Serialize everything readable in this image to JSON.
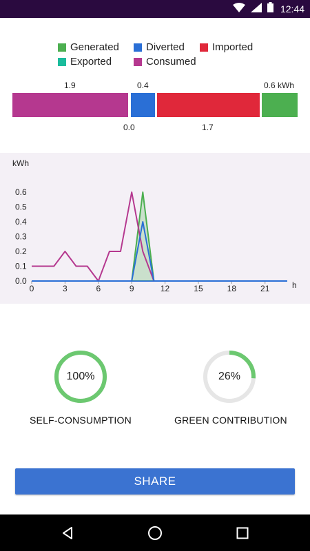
{
  "status_bar": {
    "time": "12:44",
    "icons": [
      "wifi-icon",
      "signal-icon",
      "battery-icon"
    ]
  },
  "legend": [
    {
      "label": "Generated",
      "color": "#4caf50"
    },
    {
      "label": "Diverted",
      "color": "#2a6fd6"
    },
    {
      "label": "Imported",
      "color": "#e0283a"
    },
    {
      "label": "Exported",
      "color": "#1abc9c"
    },
    {
      "label": "Consumed",
      "color": "#b5388f"
    }
  ],
  "summary_bar": {
    "segments": [
      {
        "name": "Consumed",
        "value": 1.9,
        "color": "#b5388f"
      },
      {
        "name": "Diverted",
        "value": 0.4,
        "color": "#2a6fd6"
      },
      {
        "name": "Imported",
        "value": 1.7,
        "color": "#e0283a"
      },
      {
        "name": "Generated",
        "value": 0.6,
        "color": "#4caf50"
      }
    ],
    "labels_top": [
      "1.9",
      "0.4",
      "0.6 kWh"
    ],
    "labels_bottom": [
      "0.0",
      "1.7"
    ]
  },
  "chart_data": {
    "type": "line",
    "ylabel": "kWh",
    "xlabel": "h",
    "xlim": [
      0,
      23
    ],
    "ylim": [
      0,
      0.6
    ],
    "x_ticks": [
      "0",
      "3",
      "6",
      "9",
      "12",
      "15",
      "18",
      "21"
    ],
    "y_ticks": [
      "0.0",
      "0.1",
      "0.2",
      "0.3",
      "0.4",
      "0.5",
      "0.6"
    ],
    "series": [
      {
        "name": "Consumed",
        "color": "#b5388f",
        "x": [
          0,
          1,
          2,
          3,
          4,
          5,
          6,
          7,
          8,
          9,
          10,
          11,
          12,
          13,
          14,
          15,
          16,
          17,
          18,
          19,
          20,
          21,
          22,
          23
        ],
        "values": [
          0.1,
          0.1,
          0.1,
          0.2,
          0.1,
          0.1,
          0.0,
          0.2,
          0.2,
          0.6,
          0.2,
          0.0,
          0,
          0,
          0,
          0,
          0,
          0,
          0,
          0,
          0,
          0,
          0,
          0
        ]
      },
      {
        "name": "Generated",
        "color": "#4caf50",
        "fill": true,
        "x": [
          0,
          1,
          2,
          3,
          4,
          5,
          6,
          7,
          8,
          9,
          10,
          11,
          12,
          13,
          14,
          15,
          16,
          17,
          18,
          19,
          20,
          21,
          22,
          23
        ],
        "values": [
          0,
          0,
          0,
          0,
          0,
          0,
          0,
          0,
          0,
          0,
          0.6,
          0,
          0,
          0,
          0,
          0,
          0,
          0,
          0,
          0,
          0,
          0,
          0,
          0
        ]
      },
      {
        "name": "Diverted",
        "color": "#2a6fd6",
        "x": [
          0,
          1,
          2,
          3,
          4,
          5,
          6,
          7,
          8,
          9,
          10,
          11,
          12,
          13,
          14,
          15,
          16,
          17,
          18,
          19,
          20,
          21,
          22,
          23
        ],
        "values": [
          0,
          0,
          0,
          0,
          0,
          0,
          0,
          0,
          0,
          0,
          0.4,
          0,
          0,
          0,
          0,
          0,
          0,
          0,
          0,
          0,
          0,
          0,
          0,
          0
        ]
      }
    ]
  },
  "metrics": [
    {
      "label": "SELF-CONSUMPTION",
      "value_text": "100%",
      "fraction": 1.0
    },
    {
      "label": "GREEN CONTRIBUTION",
      "value_text": "26%",
      "fraction": 0.26
    }
  ],
  "share_label": "SHARE",
  "nav": [
    "back-icon",
    "home-icon",
    "recents-icon"
  ]
}
